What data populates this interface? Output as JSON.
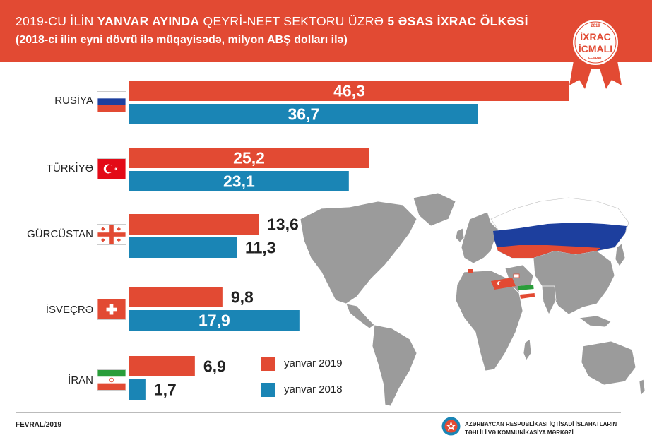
{
  "header": {
    "title_prefix": "2019-CU İLİN",
    "title_bold1": "YANVAR AYINDA",
    "title_middle": "QEYRİ-NEFT SEKTORU ÜZRƏ",
    "title_bold2": "5 ƏSAS İXRAC ÖLKƏSİ",
    "subtitle": "(2018-ci ilin eyni dövrü ilə müqayisədə, milyon ABŞ dolları ilə)"
  },
  "badge": {
    "year": "2019",
    "line1": "İXRAC",
    "line2": "İCMALI",
    "month": "FEVRAL"
  },
  "colors": {
    "header": "#e24a33",
    "series_2019": "#e24a33",
    "series_2018": "#1a85b5",
    "map_land": "#9b9b9b"
  },
  "chart_data": {
    "type": "bar",
    "orientation": "horizontal",
    "categories": [
      "RUSİYA",
      "TÜRKİYƏ",
      "GÜRCÜSTAN",
      "İSVEÇRƏ",
      "İRAN"
    ],
    "series": [
      {
        "name": "yanvar 2019",
        "values": [
          46.3,
          25.2,
          13.6,
          9.8,
          6.9
        ],
        "labels": [
          "46,3",
          "25,2",
          "13,6",
          "9,8",
          "6,9"
        ]
      },
      {
        "name": "yanvar 2018",
        "values": [
          36.7,
          23.1,
          11.3,
          17.9,
          1.7
        ],
        "labels": [
          "36,7",
          "23,1",
          "11,3",
          "17,9",
          "1,7"
        ]
      }
    ],
    "title": "",
    "xlabel": "",
    "ylabel": "",
    "xlim": [
      0,
      46.3
    ],
    "legend_position": "bottom-center",
    "grid": false
  },
  "legend": {
    "item_2019": "yanvar 2019",
    "item_2018": "yanvar 2018"
  },
  "footer": {
    "date": "FEVRAL/2019",
    "org_line1": "AZƏRBAYCAN RESPUBLİKASI İQTİSADİ İSLAHATLARIN",
    "org_line2": "TƏHLİLİ VƏ KOMMUNİKASİYA MƏRKƏZİ"
  }
}
